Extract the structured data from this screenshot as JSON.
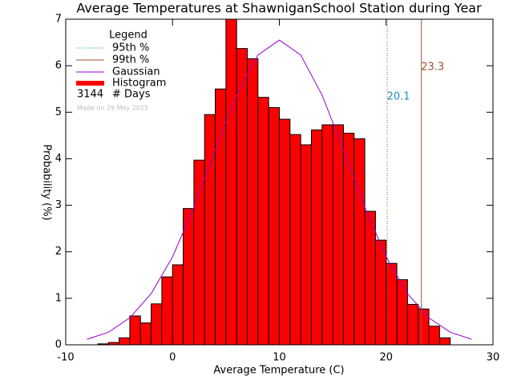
{
  "chart_data": {
    "type": "histogram",
    "title": "Average Temperatures at ShawniganSchool Station during Year",
    "xlabel": "Average Temperature (C)",
    "ylabel": "Probability (%)",
    "histogram_name": "Histogram",
    "color": "#ff0000",
    "bins": [
      -7,
      -6,
      -5,
      -4,
      -3,
      -2,
      -1,
      0,
      1,
      2,
      3,
      4,
      5,
      6,
      7,
      8,
      9,
      10,
      11,
      12,
      13,
      14,
      15,
      16,
      17,
      18,
      19,
      20,
      21,
      22,
      23,
      24,
      25,
      26
    ],
    "values": [
      0.02,
      0.05,
      0.15,
      0.62,
      0.47,
      0.88,
      1.46,
      1.72,
      2.93,
      3.97,
      4.95,
      5.5,
      7.0,
      6.37,
      6.15,
      5.32,
      5.1,
      4.85,
      4.52,
      4.3,
      4.62,
      4.73,
      4.73,
      4.55,
      4.43,
      2.87,
      2.25,
      1.75,
      1.4,
      0.87,
      0.77,
      0.4,
      0.15
    ],
    "gaussian": {
      "name": "Gaussian",
      "color": "#9900cc",
      "x": [
        -8,
        -6,
        -4,
        -2,
        0,
        2,
        4,
        6,
        8,
        10,
        12,
        14,
        16,
        18,
        20,
        22,
        24,
        26,
        28
      ],
      "values": [
        0.12,
        0.27,
        0.58,
        1.1,
        1.89,
        2.96,
        4.19,
        5.37,
        6.23,
        6.55,
        6.23,
        5.37,
        4.19,
        2.96,
        1.89,
        1.1,
        0.58,
        0.27,
        0.12
      ]
    },
    "percentiles": [
      {
        "name": "95th %",
        "value": 20.1,
        "color": "#1a8fbf",
        "style": "dotted",
        "line_color": "#a0522d"
      },
      {
        "name": "99th %",
        "value": 23.3,
        "color": "#a0522d",
        "style": "solid",
        "line_color": "#a0522d"
      }
    ],
    "legend_title": "Legend",
    "days_count": 3144,
    "days_label": "# Days",
    "note": "Made on 29 May 2025",
    "xlim": [
      -10,
      30
    ],
    "xticks": [
      -10,
      0,
      10,
      20,
      30
    ],
    "ylim": [
      0,
      7
    ],
    "yticks": [
      0,
      1,
      2,
      3,
      4,
      5,
      6,
      7
    ]
  }
}
